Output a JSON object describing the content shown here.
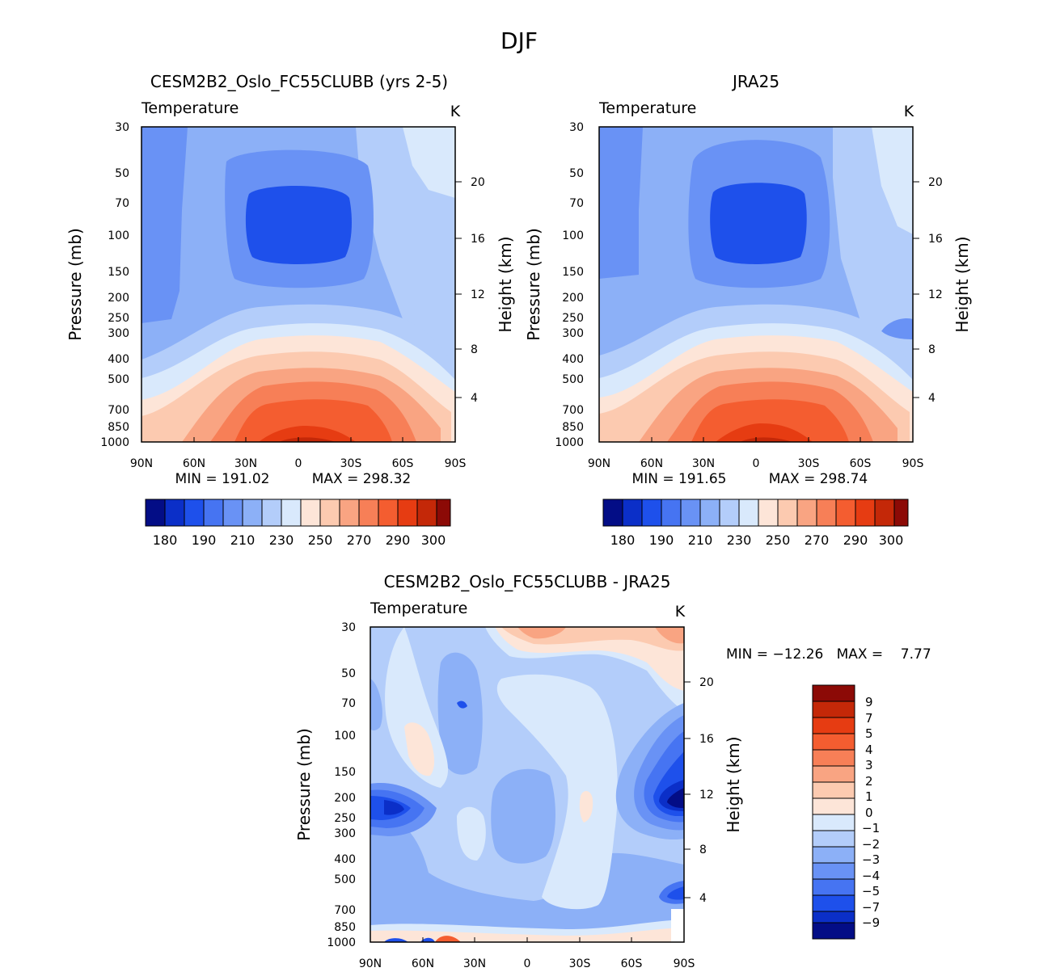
{
  "page": {
    "title": "DJF"
  },
  "colors": {
    "warm": [
      "#fde5d8",
      "#fccab0",
      "#f9a482",
      "#f77f57",
      "#f45d30",
      "#e63c12",
      "#c42808",
      "#8c0a06"
    ],
    "cool": [
      "#d9e9fc",
      "#b3cdfa",
      "#8cb0f7",
      "#6992f5",
      "#4674f2",
      "#1e50eb",
      "#0b2fc8",
      "#030d86"
    ]
  },
  "chart_data": [
    {
      "id": "model",
      "type": "contour",
      "title": "CESM2B2_Oslo_FC55CLUBB (yrs 2-5)",
      "variable": "Temperature",
      "units": "K",
      "ylabel": "Pressure (mb)",
      "ylabel_right": "Height (km)",
      "x_ticks": [
        "90N",
        "60N",
        "30N",
        "0",
        "30S",
        "60S",
        "90S"
      ],
      "y_ticks": [
        "30",
        "50",
        "70",
        "100",
        "150",
        "200",
        "250",
        "300",
        "400",
        "500",
        "700",
        "850",
        "1000"
      ],
      "right_ticks": [
        "20",
        "16",
        "12",
        "8",
        "4"
      ],
      "min_label": "MIN = 191.02",
      "max_label": "MAX = 298.32",
      "min": 191.02,
      "max": 298.32,
      "colorbar_labels": [
        "180",
        "190",
        "210",
        "230",
        "250",
        "270",
        "290",
        "300"
      ]
    },
    {
      "id": "obs",
      "type": "contour",
      "title": "JRA25",
      "variable": "Temperature",
      "units": "K",
      "ylabel": "Pressure (mb)",
      "ylabel_right": "Height (km)",
      "x_ticks": [
        "90N",
        "60N",
        "30N",
        "0",
        "30S",
        "60S",
        "90S"
      ],
      "y_ticks": [
        "30",
        "50",
        "70",
        "100",
        "150",
        "200",
        "250",
        "300",
        "400",
        "500",
        "700",
        "850",
        "1000"
      ],
      "right_ticks": [
        "20",
        "16",
        "12",
        "8",
        "4"
      ],
      "min_label": "MIN = 191.65",
      "max_label": "MAX = 298.74",
      "min": 191.65,
      "max": 298.74,
      "colorbar_labels": [
        "180",
        "190",
        "210",
        "230",
        "250",
        "270",
        "290",
        "300"
      ]
    },
    {
      "id": "diff",
      "type": "contour",
      "title": "CESM2B2_Oslo_FC55CLUBB - JRA25",
      "variable": "Temperature",
      "units": "K",
      "ylabel": "Pressure (mb)",
      "ylabel_right": "Height (km)",
      "x_ticks": [
        "90N",
        "60N",
        "30N",
        "0",
        "30S",
        "60S",
        "90S"
      ],
      "y_ticks": [
        "30",
        "50",
        "70",
        "100",
        "150",
        "200",
        "250",
        "300",
        "400",
        "500",
        "700",
        "850",
        "1000"
      ],
      "right_ticks": [
        "20",
        "16",
        "12",
        "8",
        "4"
      ],
      "minmax_label": "MIN = −12.26   MAX =    7.77",
      "min": -12.26,
      "max": 7.77,
      "colorbar_labels": [
        "9",
        "7",
        "5",
        "4",
        "3",
        "2",
        "1",
        "0",
        "−1",
        "−2",
        "−3",
        "−4",
        "−5",
        "−7",
        "−9"
      ]
    }
  ]
}
